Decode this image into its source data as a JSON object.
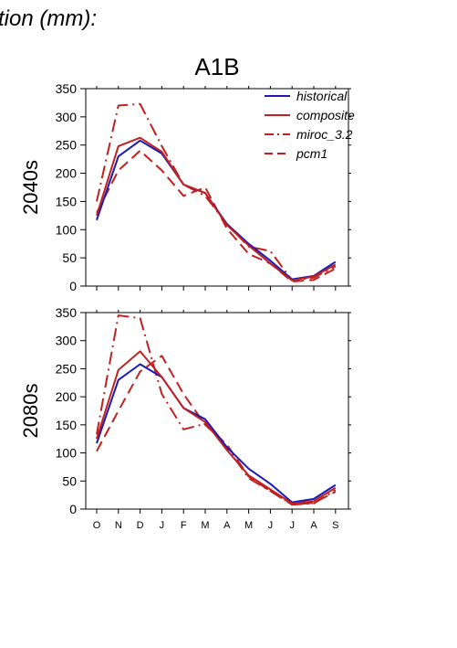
{
  "page_title": "tion (mm):",
  "scenario_title": "A1B",
  "chart_data": [
    {
      "type": "line",
      "title": "A1B",
      "ylabel": "2040s",
      "xlabel": "",
      "categories": [
        "O",
        "N",
        "D",
        "J",
        "F",
        "M",
        "A",
        "M",
        "J",
        "J",
        "A",
        "S"
      ],
      "ylim": [
        0,
        350
      ],
      "yticks": [
        0,
        50,
        100,
        150,
        200,
        250,
        300,
        350
      ],
      "legend_position": "top-right",
      "series": [
        {
          "name": "historical",
          "color": "#1a1ab8",
          "style": "solid",
          "values": [
            117,
            230,
            258,
            235,
            180,
            165,
            110,
            75,
            45,
            12,
            18,
            43
          ]
        },
        {
          "name": "composite",
          "color": "#c0201f",
          "style": "solid",
          "values": [
            125,
            248,
            263,
            238,
            180,
            165,
            108,
            72,
            40,
            10,
            17,
            38
          ]
        },
        {
          "name": "miroc_3.2",
          "color": "#c0201f",
          "style": "dashdot",
          "values": [
            150,
            320,
            323,
            248,
            180,
            160,
            110,
            70,
            62,
            10,
            15,
            35
          ]
        },
        {
          "name": "pcm1",
          "color": "#c0201f",
          "style": "dash",
          "values": [
            130,
            205,
            240,
            205,
            160,
            175,
            102,
            57,
            40,
            8,
            11,
            31
          ]
        }
      ]
    },
    {
      "type": "line",
      "title": "",
      "ylabel": "2080s",
      "xlabel": "",
      "categories": [
        "O",
        "N",
        "D",
        "J",
        "F",
        "M",
        "A",
        "M",
        "J",
        "J",
        "A",
        "S"
      ],
      "ylim": [
        0,
        350
      ],
      "yticks": [
        0,
        50,
        100,
        150,
        200,
        250,
        300,
        350
      ],
      "series": [
        {
          "name": "historical",
          "color": "#1a1ab8",
          "style": "solid",
          "values": [
            117,
            230,
            258,
            235,
            180,
            160,
            110,
            72,
            45,
            12,
            18,
            43
          ]
        },
        {
          "name": "composite",
          "color": "#c0201f",
          "style": "solid",
          "values": [
            125,
            248,
            281,
            235,
            180,
            155,
            105,
            60,
            35,
            10,
            14,
            38
          ]
        },
        {
          "name": "miroc_3.2",
          "color": "#c0201f",
          "style": "dashdot",
          "values": [
            133,
            345,
            340,
            205,
            142,
            152,
            110,
            55,
            32,
            8,
            10,
            34
          ]
        },
        {
          "name": "pcm1",
          "color": "#c0201f",
          "style": "dash",
          "values": [
            103,
            175,
            245,
            273,
            205,
            150,
            115,
            58,
            32,
            8,
            11,
            31
          ]
        }
      ]
    }
  ]
}
